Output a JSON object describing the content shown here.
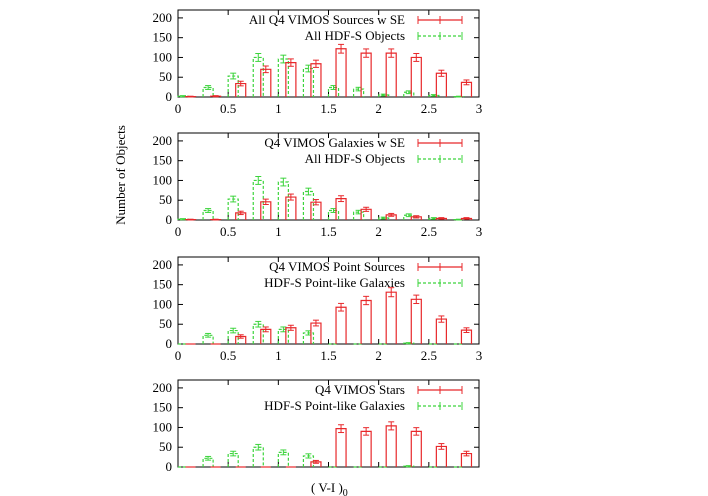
{
  "figure": {
    "ylabel": "Number of Objects",
    "xlabel_main": "( V-I )",
    "xlabel_sub": "0"
  },
  "chart_data": [
    {
      "type": "bar",
      "xlim": [
        0,
        3
      ],
      "ylim": [
        0,
        220
      ],
      "xticks": [
        "0",
        "0.5",
        "1",
        "1.5",
        "2",
        "2.5",
        "3"
      ],
      "yticks": [
        "0",
        "50",
        "100",
        "150",
        "200"
      ],
      "show_xtick_labels": true,
      "legend_position": "top-right",
      "series": [
        {
          "name": "All Q4 VIMOS Sources w SE",
          "style": "solid",
          "color": "#e8282b",
          "x": [
            0.125,
            0.375,
            0.625,
            0.875,
            1.125,
            1.375,
            1.625,
            1.875,
            2.125,
            2.375,
            2.625,
            2.875
          ],
          "values": [
            1,
            2,
            34,
            70,
            87,
            84,
            122,
            111,
            111,
            100,
            60,
            37
          ]
        },
        {
          "name": "All HDF-S Objects",
          "style": "dashed",
          "color": "#3cd43c",
          "x": [
            0.05,
            0.3,
            0.55,
            0.8,
            1.05,
            1.3,
            1.55,
            1.8,
            2.05,
            2.3,
            2.55,
            2.8
          ],
          "values": [
            2,
            24,
            53,
            100,
            96,
            72,
            24,
            20,
            5,
            12,
            4,
            1
          ]
        }
      ]
    },
    {
      "type": "bar",
      "xlim": [
        0,
        3
      ],
      "ylim": [
        0,
        220
      ],
      "xticks": [
        "0",
        "0.5",
        "1",
        "1.5",
        "2",
        "2.5",
        "3"
      ],
      "yticks": [
        "0",
        "50",
        "100",
        "150",
        "200"
      ],
      "show_xtick_labels": true,
      "legend_position": "top-right",
      "series": [
        {
          "name": "Q4 VIMOS Galaxies w SE",
          "style": "solid",
          "color": "#e8282b",
          "x": [
            0.125,
            0.375,
            0.625,
            0.875,
            1.125,
            1.375,
            1.625,
            1.875,
            2.125,
            2.375,
            2.625,
            2.875
          ],
          "values": [
            1,
            1,
            18,
            46,
            58,
            45,
            54,
            27,
            13,
            8,
            4,
            4
          ]
        },
        {
          "name": "All HDF-S Objects",
          "style": "dashed",
          "color": "#3cd43c",
          "x": [
            0.05,
            0.3,
            0.55,
            0.8,
            1.05,
            1.3,
            1.55,
            1.8,
            2.05,
            2.3,
            2.55,
            2.8
          ],
          "values": [
            2,
            24,
            53,
            100,
            96,
            72,
            24,
            20,
            5,
            12,
            4,
            1
          ]
        }
      ]
    },
    {
      "type": "bar",
      "xlim": [
        0,
        3
      ],
      "ylim": [
        0,
        220
      ],
      "xticks": [
        "0",
        "0.5",
        "1",
        "1.5",
        "2",
        "2.5",
        "3"
      ],
      "yticks": [
        "0",
        "50",
        "100",
        "150",
        "200"
      ],
      "show_xtick_labels": true,
      "legend_position": "top-right",
      "series": [
        {
          "name": "Q4 VIMOS Point Sources",
          "style": "solid",
          "color": "#e8282b",
          "x": [
            0.125,
            0.375,
            0.625,
            0.875,
            1.125,
            1.375,
            1.625,
            1.875,
            2.125,
            2.375,
            2.625,
            2.875
          ],
          "values": [
            0,
            0,
            19,
            37,
            41,
            53,
            93,
            110,
            131,
            113,
            63,
            35
          ]
        },
        {
          "name": "HDF-S Point-like Galaxies",
          "style": "dashed",
          "color": "#3cd43c",
          "x": [
            0.05,
            0.3,
            0.55,
            0.8,
            1.05,
            1.3,
            1.55,
            1.8,
            2.05,
            2.3,
            2.55,
            2.8
          ],
          "values": [
            0,
            22,
            34,
            50,
            37,
            28,
            0,
            0,
            0,
            2,
            0,
            0
          ]
        }
      ]
    },
    {
      "type": "bar",
      "xlim": [
        0,
        3
      ],
      "ylim": [
        0,
        220
      ],
      "xticks": [
        "0",
        "0.5",
        "1",
        "1.5",
        "2",
        "2.5",
        "3"
      ],
      "yticks": [
        "0",
        "50",
        "100",
        "150",
        "200"
      ],
      "show_xtick_labels": false,
      "legend_position": "top-right",
      "series": [
        {
          "name": "Q4 VIMOS Stars",
          "style": "solid",
          "color": "#e8282b",
          "x": [
            0.125,
            0.375,
            0.625,
            0.875,
            1.125,
            1.375,
            1.625,
            1.875,
            2.125,
            2.375,
            2.625,
            2.875
          ],
          "values": [
            0,
            0,
            0,
            0,
            0,
            13,
            97,
            90,
            104,
            90,
            52,
            34
          ]
        },
        {
          "name": "HDF-S Point-like Galaxies",
          "style": "dashed",
          "color": "#3cd43c",
          "x": [
            0.05,
            0.3,
            0.55,
            0.8,
            1.05,
            1.3,
            1.55,
            1.8,
            2.05,
            2.3,
            2.55,
            2.8
          ],
          "values": [
            0,
            22,
            34,
            50,
            37,
            28,
            0,
            0,
            0,
            2,
            0,
            0
          ]
        }
      ]
    }
  ]
}
